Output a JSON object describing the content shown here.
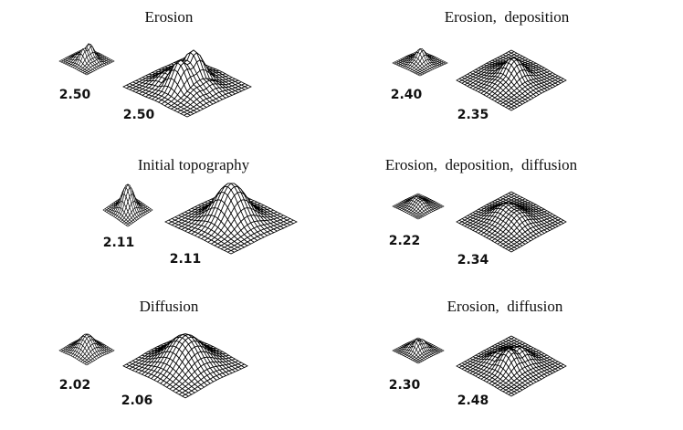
{
  "panels": [
    {
      "title": "Erosion",
      "small_label": "2.50",
      "large_label": "2.50"
    },
    {
      "title": "Initial topography",
      "small_label": "2.11",
      "large_label": "2.11"
    },
    {
      "title": "Diffusion",
      "small_label": "2.02",
      "large_label": "2.06"
    },
    {
      "title": "Erosion,  deposition",
      "small_label": "2.40",
      "large_label": "2.35"
    },
    {
      "title": "Erosion,  deposition,  diffusion",
      "small_label": "2.22",
      "large_label": "2.34"
    },
    {
      "title": "Erosion,  diffusion",
      "small_label": "2.30",
      "large_label": "2.48"
    }
  ]
}
